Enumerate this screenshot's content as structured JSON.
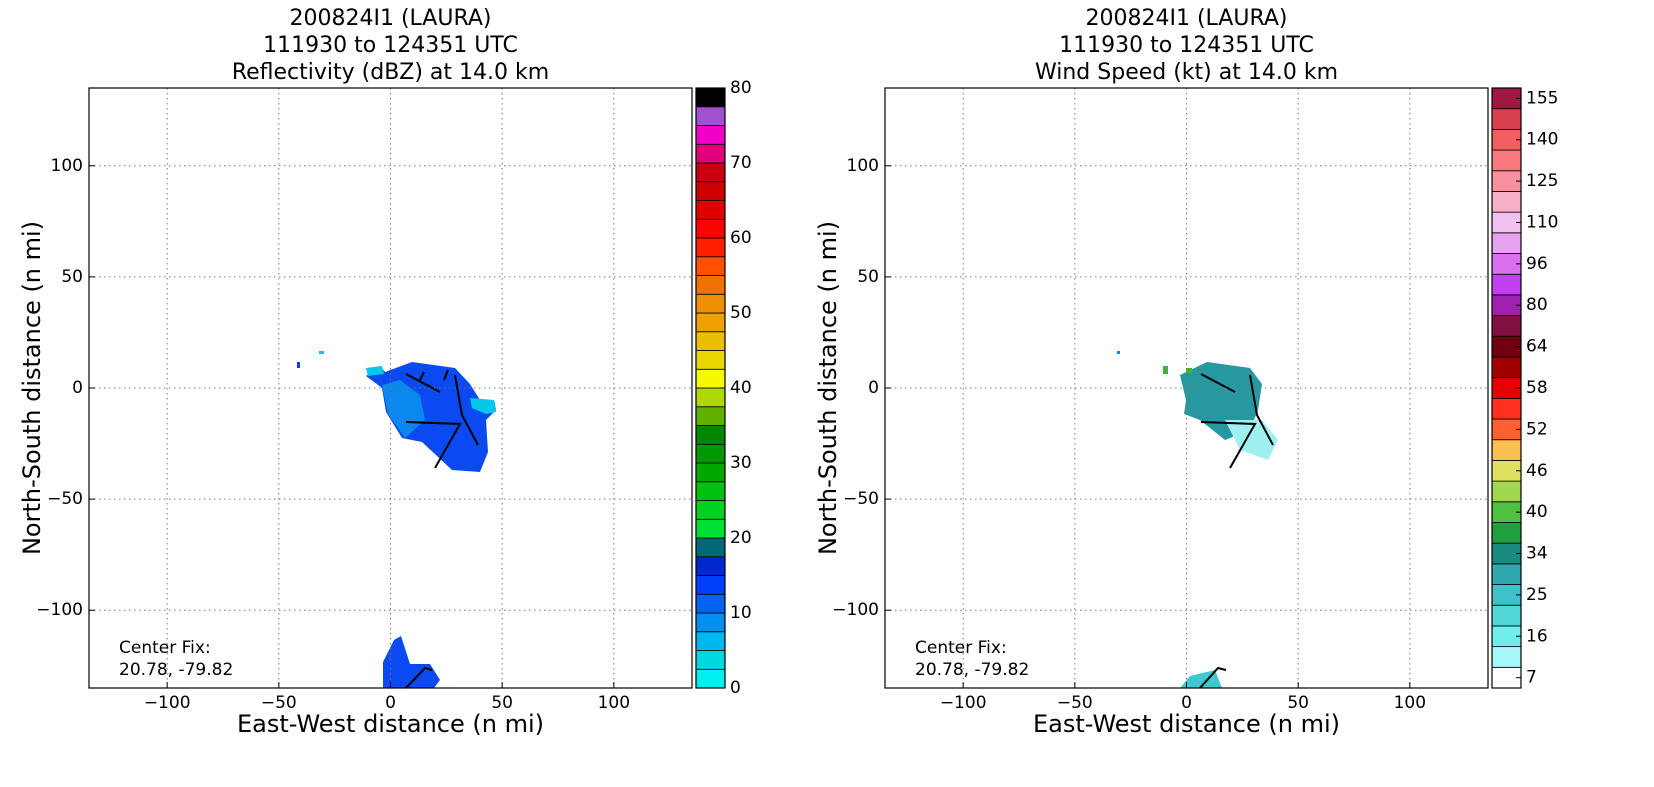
{
  "chart_data": [
    {
      "type": "radar_map",
      "title": [
        "200824I1 (LAURA)",
        "111930 to 124351 UTC",
        "Reflectivity (dBZ) at 14.0 km"
      ],
      "x_label": "East-West distance (n mi)",
      "y_label": "North-South distance (n mi)",
      "xlim": [
        -135,
        135
      ],
      "ylim": [
        -135,
        135
      ],
      "xticks": [
        {
          "value": -100,
          "label": "−100"
        },
        {
          "value": -50,
          "label": "−50"
        },
        0,
        50,
        100
      ],
      "yticks": [
        {
          "value": -100,
          "label": "−100"
        },
        {
          "value": -50,
          "label": "−50"
        },
        0,
        50,
        100
      ],
      "grid": true,
      "annotation": [
        "Center Fix:",
        "20.78, -79.82"
      ],
      "colorbar": {
        "lim": [
          0,
          80
        ],
        "ticks": [
          0,
          10,
          20,
          30,
          40,
          50,
          60,
          70,
          80
        ],
        "colors": [
          "#00f0f0",
          "#00d8e0",
          "#00b8f0",
          "#0090f0",
          "#0064f0",
          "#0040f8",
          "#0028d0",
          "#006878",
          "#00e030",
          "#00d020",
          "#00c010",
          "#00a800",
          "#009800",
          "#008800",
          "#60b000",
          "#b0d800",
          "#f8f800",
          "#e8d800",
          "#e8c000",
          "#f0a000",
          "#f09000",
          "#f07000",
          "#ff5000",
          "#ff2000",
          "#ff0000",
          "#e00000",
          "#d00000",
          "#c80010",
          "#e0007a",
          "#f000c8",
          "#a050d0",
          "#000000"
        ]
      }
    },
    {
      "type": "radar_map",
      "title": [
        "200824I1 (LAURA)",
        "111930 to 124351 UTC",
        "Wind Speed (kt) at 14.0 km"
      ],
      "x_label": "East-West distance (n mi)",
      "y_label": "North-South distance (n mi)",
      "xlim": [
        -135,
        135
      ],
      "ylim": [
        -135,
        135
      ],
      "xticks": [
        {
          "value": -100,
          "label": "−100"
        },
        {
          "value": -50,
          "label": "−50"
        },
        0,
        50,
        100
      ],
      "yticks": [
        {
          "value": -100,
          "label": "−100"
        },
        {
          "value": -50,
          "label": "−50"
        },
        0,
        50,
        100
      ],
      "grid": true,
      "annotation": [
        "Center Fix:",
        "20.78, -79.82"
      ],
      "colorbar": {
        "ticks": [
          7,
          16,
          25,
          34,
          40,
          46,
          52,
          58,
          64,
          80,
          96,
          110,
          125,
          140,
          155
        ],
        "colors": [
          "#ffffff",
          "#a8f8f8",
          "#70eeee",
          "#50d8d8",
          "#40c0c8",
          "#30a8b0",
          "#1a8a80",
          "#20a040",
          "#50c040",
          "#a0d850",
          "#e0e060",
          "#f8c050",
          "#ff6030",
          "#ff3020",
          "#e80000",
          "#a00000",
          "#700010",
          "#801040",
          "#a020b0",
          "#c040f0",
          "#d870f0",
          "#e8a0f0",
          "#f0c0f0",
          "#f8b0c8",
          "#f890a0",
          "#f87880",
          "#f06060",
          "#d84050",
          "#a01840"
        ]
      }
    }
  ]
}
